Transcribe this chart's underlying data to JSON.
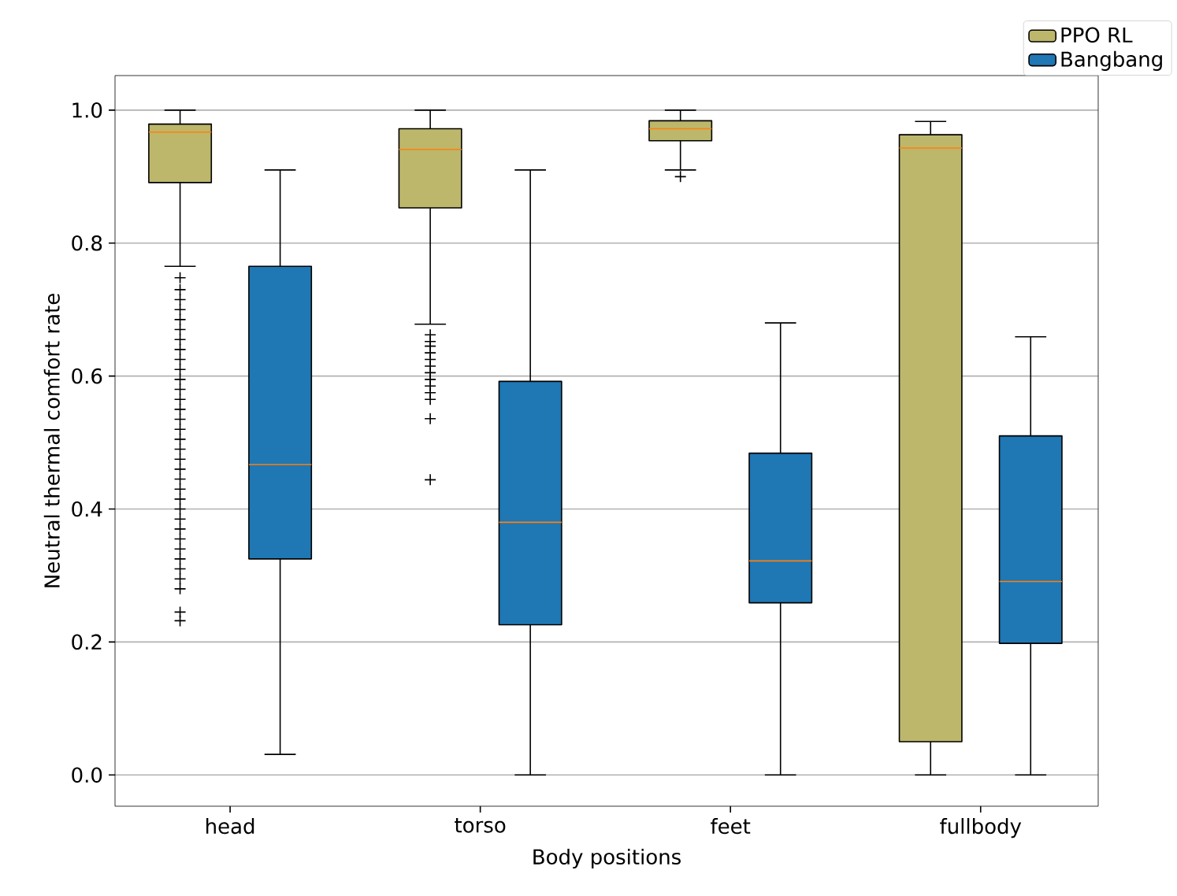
{
  "chart_data": {
    "type": "box",
    "xlabel": "Body positions",
    "ylabel": "Neutral thermal comfort rate",
    "categories": [
      "head",
      "torso",
      "feet",
      "fullbody"
    ],
    "ylim": [
      -0.047,
      1.052
    ],
    "yticks": [
      {
        "value": 0,
        "label": "0.0"
      },
      0.2,
      0.4,
      0.6,
      0.8,
      {
        "value": 1,
        "label": "1.0"
      }
    ],
    "grid": "y",
    "legend": "top right",
    "series": [
      {
        "name": "PPO RL",
        "color": "#bdb76b",
        "boxes": [
          {
            "low": 0.765,
            "q1": 0.891,
            "median": 0.967,
            "q3": 0.979,
            "high": 1.0,
            "outliers": [
              0.748,
              0.73,
              0.715,
              0.7,
              0.685,
              0.67,
              0.655,
              0.64,
              0.625,
              0.61,
              0.595,
              0.58,
              0.565,
              0.55,
              0.535,
              0.52,
              0.505,
              0.49,
              0.475,
              0.46,
              0.445,
              0.43,
              0.415,
              0.4,
              0.385,
              0.37,
              0.355,
              0.34,
              0.325,
              0.31,
              0.295,
              0.28,
              0.245,
              0.232
            ]
          },
          {
            "low": 0.678,
            "q1": 0.853,
            "median": 0.941,
            "q3": 0.972,
            "high": 1.0,
            "outliers": [
              0.662,
              0.652,
              0.645,
              0.635,
              0.625,
              0.615,
              0.605,
              0.595,
              0.585,
              0.575,
              0.565,
              0.536,
              0.444
            ]
          },
          {
            "low": 0.91,
            "q1": 0.954,
            "median": 0.972,
            "q3": 0.984,
            "high": 1.0,
            "outliers": [
              0.9
            ]
          },
          {
            "low": 0.0,
            "q1": 0.05,
            "median": 0.943,
            "q3": 0.963,
            "high": 0.983
          }
        ]
      },
      {
        "name": "Bangbang",
        "color": "#1f77b4",
        "boxes": [
          {
            "low": 0.031,
            "q1": 0.325,
            "median": 0.467,
            "q3": 0.765,
            "high": 0.91
          },
          {
            "low": 0.0,
            "q1": 0.226,
            "median": 0.38,
            "q3": 0.592,
            "high": 0.91
          },
          {
            "low": 0.0,
            "q1": 0.259,
            "median": 0.322,
            "q3": 0.484,
            "high": 0.68
          },
          {
            "low": 0.0,
            "q1": 0.198,
            "median": 0.291,
            "q3": 0.51,
            "high": 0.659
          }
        ]
      }
    ]
  }
}
